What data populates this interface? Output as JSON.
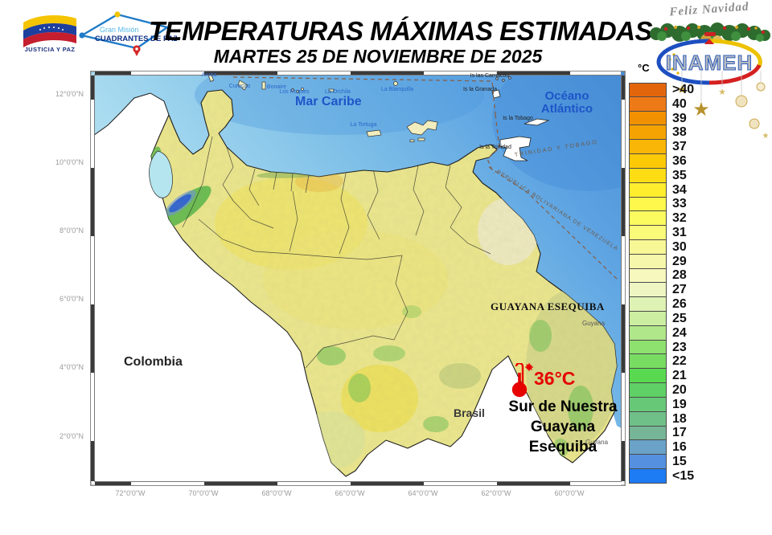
{
  "header": {
    "title": "TEMPERATURAS MÁXIMAS ESTIMADAS",
    "subtitle": "MARTES 25 DE NOVIEMBRE  DE 2025",
    "justice_logo_caption": "JUSTICIA Y PAZ",
    "mission_logo": {
      "line1": "Gran Misión",
      "line2": "CUADRANTES DE PAZ"
    },
    "greeting": "Feliz Navidad",
    "agency": "INAMEH"
  },
  "map": {
    "sea_labels": {
      "caribbean": "Mar Caribe",
      "atlantic_line1": "Océano",
      "atlantic_line2": "Atlántico"
    },
    "countries": {
      "colombia": "Colombia",
      "brasil": "Brasil",
      "guyana_east": "Guyana",
      "guyana_south": "Guyana"
    },
    "region": "GUAYANA ESEQUIBA",
    "islands": [
      "Aruba",
      "Curaçao",
      "Bonaire",
      "Los Roques",
      "La Orchila",
      "La Blanquilla",
      "La Tortuga"
    ],
    "foreign_islands": [
      "Is las Carriacou",
      "Is la Granada",
      "Is la Tobago",
      "Is la Trinidad"
    ],
    "boundaries": [
      "TRINIDAD Y TOBAGO",
      "REPÚBLICA BOLIVARIANA DE VENEZUELA"
    ],
    "annotation": {
      "temperature": "36°C",
      "line1": "Sur de Nuestra",
      "line2": "Guayana",
      "line3": "Esequiba"
    },
    "lat_ticks": [
      "12°0'0\"N",
      "10°0'0\"N",
      "8°0'0\"N",
      "6°0'0\"N",
      "4°0'0\"N",
      "2°0'0\"N"
    ],
    "lon_ticks": [
      "72°0'0\"W",
      "70°0'0\"W",
      "68°0'0\"W",
      "66°0'0\"W",
      "64°0'0\"W",
      "62°0'0\"W",
      "60°0'0\"W"
    ]
  },
  "legend": {
    "unit": "°C",
    "entries": [
      {
        "label": ">40",
        "color": "#E2650C"
      },
      {
        "label": "40",
        "color": "#ED7A16"
      },
      {
        "label": "39",
        "color": "#F19100"
      },
      {
        "label": "38",
        "color": "#F5A303"
      },
      {
        "label": "37",
        "color": "#F9B607"
      },
      {
        "label": "36",
        "color": "#FCC907"
      },
      {
        "label": "35",
        "color": "#FFDD15"
      },
      {
        "label": "34",
        "color": "#FFEE2E"
      },
      {
        "label": "33",
        "color": "#FDF84B"
      },
      {
        "label": "32",
        "color": "#FBFA5F"
      },
      {
        "label": "31",
        "color": "#F9F97A"
      },
      {
        "label": "30",
        "color": "#F8F795"
      },
      {
        "label": "29",
        "color": "#F7F7AB"
      },
      {
        "label": "28",
        "color": "#F6F8BE"
      },
      {
        "label": "27",
        "color": "#EEF5C3"
      },
      {
        "label": "26",
        "color": "#DFF2B5"
      },
      {
        "label": "25",
        "color": "#CBEEA0"
      },
      {
        "label": "24",
        "color": "#B0E78A"
      },
      {
        "label": "23",
        "color": "#8EE06F"
      },
      {
        "label": "22",
        "color": "#78DC63"
      },
      {
        "label": "21",
        "color": "#59D950"
      },
      {
        "label": "20",
        "color": "#5ED065"
      },
      {
        "label": "19",
        "color": "#67C878"
      },
      {
        "label": "18",
        "color": "#6FC088"
      },
      {
        "label": "17",
        "color": "#76B596"
      },
      {
        "label": "16",
        "color": "#6AA2C8"
      },
      {
        "label": "15",
        "color": "#5490DF"
      },
      {
        "label": "<15",
        "color": "#1D7BF3"
      }
    ]
  }
}
